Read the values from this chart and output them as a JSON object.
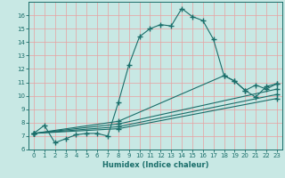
{
  "title": "",
  "xlabel": "Humidex (Indice chaleur)",
  "ylabel": "",
  "xlim": [
    -0.5,
    23.5
  ],
  "ylim": [
    6,
    17
  ],
  "xticks": [
    0,
    1,
    2,
    3,
    4,
    5,
    6,
    7,
    8,
    9,
    10,
    11,
    12,
    13,
    14,
    15,
    16,
    17,
    18,
    19,
    20,
    21,
    22,
    23
  ],
  "yticks": [
    6,
    7,
    8,
    9,
    10,
    11,
    12,
    13,
    14,
    15,
    16
  ],
  "background_color": "#c8e8e4",
  "grid_color": "#e8a0a0",
  "line_color": "#1a6e6a",
  "lines": [
    {
      "x": [
        0,
        1,
        2,
        3,
        4,
        5,
        6,
        7,
        8,
        9,
        10,
        11,
        12,
        13,
        14,
        15,
        16,
        17,
        18,
        19,
        20,
        21,
        22,
        23
      ],
      "y": [
        7.2,
        7.8,
        6.5,
        6.8,
        7.1,
        7.2,
        7.2,
        7.0,
        9.5,
        12.3,
        14.4,
        15.0,
        15.3,
        15.2,
        16.5,
        15.9,
        15.6,
        14.2,
        11.5,
        11.1,
        10.4,
        9.9,
        10.7,
        10.9
      ]
    },
    {
      "x": [
        0,
        8,
        18,
        19,
        20,
        21,
        22,
        23
      ],
      "y": [
        7.2,
        8.1,
        11.5,
        11.1,
        10.4,
        10.8,
        10.5,
        10.9
      ]
    },
    {
      "x": [
        0,
        8,
        23
      ],
      "y": [
        7.2,
        7.9,
        10.5
      ]
    },
    {
      "x": [
        0,
        8,
        23
      ],
      "y": [
        7.2,
        7.7,
        10.1
      ]
    },
    {
      "x": [
        0,
        8,
        23
      ],
      "y": [
        7.2,
        7.55,
        9.8
      ]
    }
  ],
  "marker": "+",
  "markersize": 4,
  "markeredgewidth": 1.0,
  "linewidth": 0.8
}
